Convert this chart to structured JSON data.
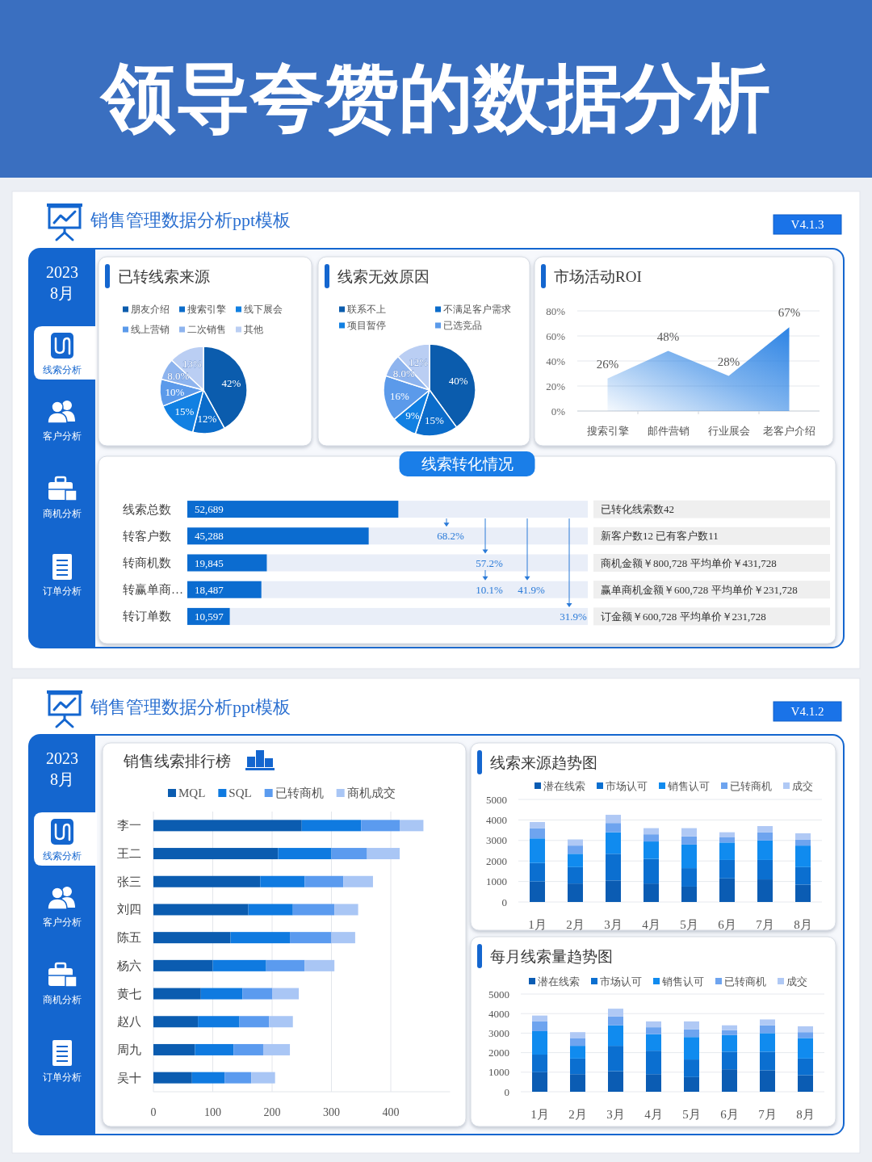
{
  "chart_data": [
    {
      "type": "other",
      "title": "领导夸赞的数据分析"
    },
    {
      "type": "other",
      "title": "销售管理数据分析ppt模板",
      "annotations": [
        "V4.1.3",
        "2023",
        "8月",
        "线索分析",
        "客户分析",
        "商机分析",
        "订单分析"
      ]
    },
    {
      "type": "pie",
      "title": "已转线索来源",
      "categories": [
        "朋友介绍",
        "搜索引擎",
        "线下展会",
        "线上营销",
        "二次销售",
        "其他"
      ],
      "values": [
        42,
        12,
        15,
        10,
        8.0,
        13
      ],
      "value_labels": [
        "42%",
        "12%",
        "15%",
        "10%",
        "8.0%",
        "13%"
      ],
      "colors": [
        "#0b5cad",
        "#0b6cca",
        "#1180e2",
        "#5b9aea",
        "#8eb4ee",
        "#bacef3"
      ],
      "legend": "top"
    },
    {
      "type": "pie",
      "title": "线索无效原因",
      "categories": [
        "联系不上",
        "不满足客户需求",
        "项目暂停",
        "已选竞品",
        null,
        null
      ],
      "values": [
        40,
        15,
        9,
        16,
        8.0,
        12
      ],
      "value_labels": [
        "40%",
        "15%",
        "9%",
        "16%",
        "8.0%",
        "12%"
      ],
      "colors": [
        "#0b5cad",
        "#0b6cca",
        "#1180e2",
        "#5b9aea",
        "#8eb4ee",
        "#bacef3"
      ],
      "legend": "top"
    },
    {
      "type": "area",
      "title": "市场活动ROI",
      "categories": [
        "搜索引擎",
        "邮件营销",
        "行业展会",
        "老客户介绍"
      ],
      "values": [
        26,
        48,
        28,
        67
      ],
      "value_labels": [
        "26%",
        "48%",
        "28%",
        "67%"
      ],
      "color": "#2c83e4",
      "ylim": [
        0,
        80
      ],
      "yticks": [
        {
          "value": 0,
          "label": "0%"
        },
        {
          "value": 20,
          "label": "20%"
        },
        {
          "value": 40,
          "label": "40%"
        },
        {
          "value": 60,
          "label": "60%"
        },
        {
          "value": 80,
          "label": "80%"
        }
      ],
      "grid": "y"
    },
    {
      "type": "bar",
      "orientation": "horizontal",
      "title": "线索转化情况",
      "categories": [
        "线索总数",
        "转客户数",
        "转商机数",
        "转赢单商…",
        "转订单数"
      ],
      "values": [
        52689,
        45288,
        19845,
        18487,
        10597
      ],
      "value_labels": [
        "52,689",
        "45,288",
        "19,845",
        "18,487",
        "10,597"
      ],
      "color": "#0b6cd0",
      "xlim": [
        0,
        100000
      ],
      "tick_labels": "y",
      "annotations": [
        "68.2%",
        "57.2%",
        "10.1%",
        "41.9%",
        "31.9%",
        "已转化线索数42",
        "新客户数12 已有客户数11",
        "商机金额￥800,728 平均单价￥431,728",
        "赢单商机金额￥600,728 平均单价￥231,728",
        "订金额￥600,728 平均单价￥231,728"
      ]
    },
    {
      "type": "other",
      "title": "销售管理数据分析ppt模板",
      "annotations": [
        "V4.1.2",
        "2023",
        "8月",
        "线索分析",
        "客户分析",
        "商机分析",
        "订单分析"
      ]
    },
    {
      "type": "bar",
      "orientation": "horizontal",
      "stacked": true,
      "title": "销售线索排行榜",
      "categories": [
        "李一",
        "王二",
        "张三",
        "刘四",
        "陈五",
        "杨六",
        "黄七",
        "赵八",
        "周九",
        "吴十"
      ],
      "series": [
        {
          "name": "MQL",
          "color": "#0b5cb0",
          "values": [
            250,
            210,
            180,
            160,
            130,
            100,
            80,
            75,
            70,
            65
          ]
        },
        {
          "name": "SQL",
          "color": "#0f7ae0",
          "values": [
            100,
            90,
            75,
            75,
            100,
            90,
            70,
            70,
            65,
            55
          ]
        },
        {
          "name": "已转商机",
          "color": "#5b9bef",
          "values": [
            65,
            60,
            65,
            70,
            70,
            65,
            50,
            50,
            50,
            45
          ]
        },
        {
          "name": "商机成交",
          "color": "#a9c6f5",
          "values": [
            40,
            55,
            50,
            40,
            40,
            50,
            45,
            40,
            45,
            40
          ]
        }
      ],
      "xlim": [
        0,
        500
      ],
      "xticks": [
        0,
        100,
        200,
        300,
        400
      ],
      "grid": "x",
      "legend": "top"
    },
    {
      "type": "bar",
      "stacked": true,
      "title": "线索来源趋势图",
      "categories": [
        "1月",
        "2月",
        "3月",
        "4月",
        "5月",
        "6月",
        "7月",
        "8月"
      ],
      "series": [
        {
          "name": "潜在线索",
          "color": "#0b5cb3",
          "values": [
            1000,
            900,
            1050,
            900,
            750,
            1150,
            1100,
            850
          ]
        },
        {
          "name": "市场认可",
          "color": "#0b6fd0",
          "values": [
            900,
            800,
            1300,
            1200,
            900,
            900,
            950,
            850
          ]
        },
        {
          "name": "销售认可",
          "color": "#108bef",
          "values": [
            1200,
            650,
            1050,
            850,
            1150,
            850,
            950,
            1050
          ]
        },
        {
          "name": "已转商机",
          "color": "#6ea4ef",
          "values": [
            500,
            400,
            450,
            350,
            400,
            250,
            400,
            300
          ]
        },
        {
          "name": "成交",
          "color": "#b0c9f5",
          "values": [
            300,
            300,
            400,
            300,
            400,
            250,
            300,
            300
          ]
        }
      ],
      "ylim": [
        0,
        5000
      ],
      "yticks": [
        0,
        1000,
        2000,
        3000,
        4000,
        5000
      ],
      "grid": "y",
      "legend": "top"
    },
    {
      "type": "bar",
      "stacked": true,
      "title": "每月线索量趋势图",
      "categories": [
        "1月",
        "2月",
        "3月",
        "4月",
        "5月",
        "6月",
        "7月",
        "8月"
      ],
      "series": [
        {
          "name": "潜在线索",
          "color": "#0b5cb3",
          "values": [
            1000,
            900,
            1050,
            900,
            750,
            1150,
            1100,
            850
          ]
        },
        {
          "name": "市场认可",
          "color": "#0b6fd0",
          "values": [
            900,
            800,
            1300,
            1200,
            900,
            900,
            950,
            850
          ]
        },
        {
          "name": "销售认可",
          "color": "#108bef",
          "values": [
            1200,
            650,
            1050,
            850,
            1150,
            850,
            950,
            1050
          ]
        },
        {
          "name": "已转商机",
          "color": "#6ea4ef",
          "values": [
            500,
            400,
            450,
            350,
            400,
            250,
            400,
            300
          ]
        },
        {
          "name": "成交",
          "color": "#b0c9f5",
          "values": [
            300,
            300,
            400,
            300,
            400,
            250,
            300,
            300
          ]
        }
      ],
      "ylim": [
        0,
        5000
      ],
      "yticks": [
        0,
        1000,
        2000,
        3000,
        4000,
        5000
      ],
      "grid": "y",
      "legend": "top"
    }
  ]
}
